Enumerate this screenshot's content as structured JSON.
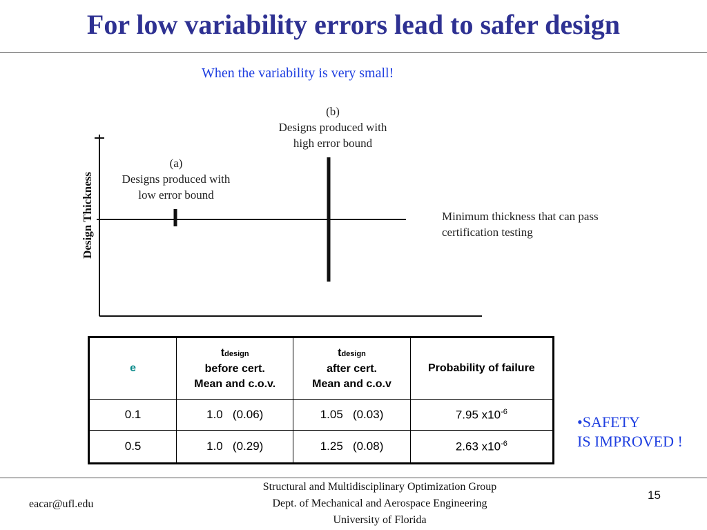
{
  "slide": {
    "title": "For low variability errors lead to safer design",
    "subtitle": "When the variability is very small!"
  },
  "diagram": {
    "ylabel": "Design Thickness",
    "label_a_tag": "(a)",
    "label_a_line1": "Designs produced with",
    "label_a_line2": "low error bound",
    "label_b_tag": "(b)",
    "label_b_line1": "Designs produced with",
    "label_b_line2": "high error bound",
    "min_line1": "Minimum thickness that can pass",
    "min_line2": "certification testing"
  },
  "table": {
    "headers": {
      "e": "e",
      "before_t": "t",
      "before_sub": "design",
      "before_l1": "before cert.",
      "before_l2": "Mean and c.o.v.",
      "after_t": "t",
      "after_sub": "design",
      "after_l1": "after cert.",
      "after_l2": "Mean and c.o.v",
      "prob": "Probability of failure"
    },
    "rows": [
      {
        "e": "0.1",
        "before": "1.0   (0.06)",
        "after": "1.05   (0.03)",
        "prob_base": "7.95 x10",
        "prob_exp": "-6"
      },
      {
        "e": "0.5",
        "before": "1.0   (0.29)",
        "after": "1.25   (0.08)",
        "prob_base": "2.63 x10",
        "prob_exp": "-6"
      }
    ]
  },
  "callout": {
    "line1": "•SAFETY",
    "line2": "IS IMPROVED !"
  },
  "footer": {
    "email": "eacar@ufl.edu",
    "line1": "Structural and Multidisciplinary Optimization Group",
    "line2": "Dept. of Mechanical and Aerospace Engineering",
    "line3": "University of Florida",
    "page": "15"
  }
}
